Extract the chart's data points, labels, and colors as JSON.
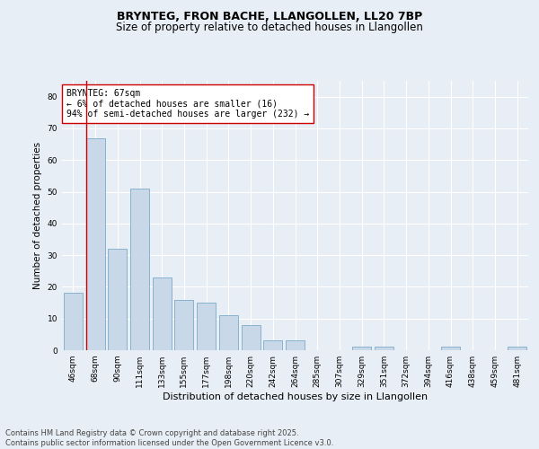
{
  "title": "BRYNTEG, FRON BACHE, LLANGOLLEN, LL20 7BP",
  "subtitle": "Size of property relative to detached houses in Llangollen",
  "xlabel": "Distribution of detached houses by size in Llangollen",
  "ylabel": "Number of detached properties",
  "categories": [
    "46sqm",
    "68sqm",
    "90sqm",
    "111sqm",
    "133sqm",
    "155sqm",
    "177sqm",
    "198sqm",
    "220sqm",
    "242sqm",
    "264sqm",
    "285sqm",
    "307sqm",
    "329sqm",
    "351sqm",
    "372sqm",
    "394sqm",
    "416sqm",
    "438sqm",
    "459sqm",
    "481sqm"
  ],
  "values": [
    18,
    67,
    32,
    51,
    23,
    16,
    15,
    11,
    8,
    3,
    3,
    0,
    0,
    1,
    1,
    0,
    0,
    1,
    0,
    0,
    1
  ],
  "bar_color": "#c8d8e8",
  "bar_edge_color": "#7aaac8",
  "highlight_bar_index": 1,
  "highlight_line_color": "#cc0000",
  "annotation_text": "BRYNTEG: 67sqm\n← 6% of detached houses are smaller (16)\n94% of semi-detached houses are larger (232) →",
  "annotation_box_color": "#ffffff",
  "annotation_box_edge_color": "#cc0000",
  "ylim": [
    0,
    85
  ],
  "yticks": [
    0,
    10,
    20,
    30,
    40,
    50,
    60,
    70,
    80
  ],
  "background_color": "#e8eef5",
  "plot_bg_color": "#e8eef5",
  "footer_text": "Contains HM Land Registry data © Crown copyright and database right 2025.\nContains public sector information licensed under the Open Government Licence v3.0.",
  "title_fontsize": 9,
  "subtitle_fontsize": 8.5,
  "xlabel_fontsize": 8,
  "ylabel_fontsize": 7.5,
  "tick_fontsize": 6.5,
  "annotation_fontsize": 7,
  "footer_fontsize": 6
}
